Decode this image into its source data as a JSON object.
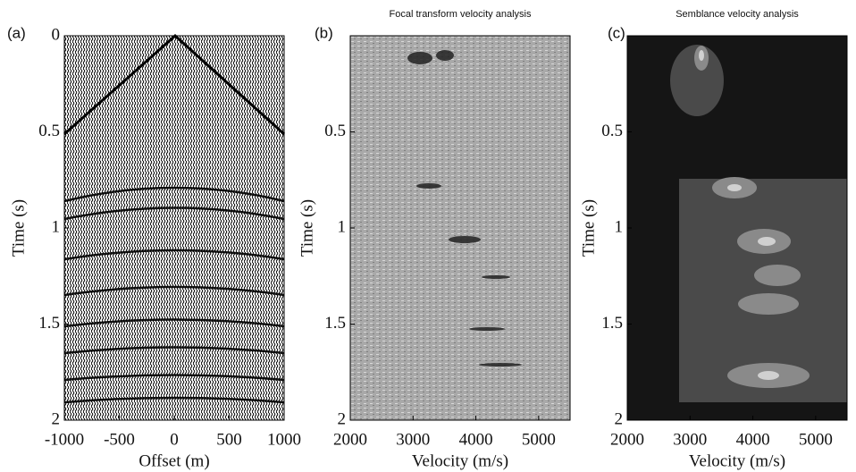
{
  "chart_data": [
    {
      "type": "image",
      "panel_label": "(a)",
      "xlabel": "Offset (m)",
      "ylabel": "Time (s)",
      "xlim": [
        -1000,
        1000
      ],
      "xticks": [
        -1000,
        -500,
        0,
        500,
        1000
      ],
      "ylim": [
        0,
        2
      ],
      "yticks": [
        0,
        0.5,
        1,
        1.5,
        2
      ],
      "y_inverted": true
    },
    {
      "type": "image",
      "panel_label": "(b)",
      "title": "Focal transform velocity analysis",
      "xlabel": "Velocity (m/s)",
      "ylabel": "Time (s)",
      "xlim": [
        2000,
        5500
      ],
      "xticks": [
        2000,
        3000,
        4000,
        5000
      ],
      "ylim": [
        0,
        2
      ],
      "yticks": [
        0.5,
        1,
        1.5,
        2
      ],
      "y_inverted": true
    },
    {
      "type": "image",
      "panel_label": "(c)",
      "title": "Semblance velocity analysis",
      "xlabel": "Velocity (m/s)",
      "ylabel": "Time (s)",
      "xlim": [
        2000,
        5500
      ],
      "xticks": [
        2000,
        3000,
        4000,
        5000
      ],
      "ylim": [
        0,
        2
      ],
      "yticks": [
        0.5,
        1,
        1.5,
        2
      ],
      "y_inverted": true
    }
  ]
}
